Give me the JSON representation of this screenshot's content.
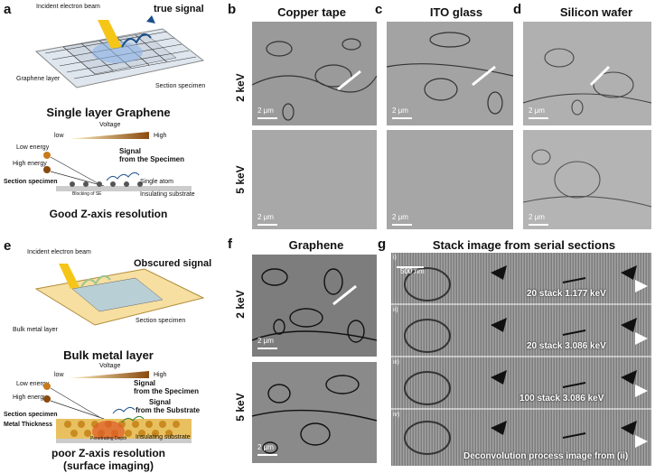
{
  "panels": {
    "a": {
      "letter": "a",
      "incident": "Incident electron beam",
      "signal": "true signal",
      "graphene_layer": "Graphene layer",
      "section": "Section specimen",
      "title": "Single layer Graphene",
      "voltage": "Voltage",
      "low": "low",
      "high": "High",
      "low_energy": "Low energy",
      "high_energy": "High energy",
      "signal_from": "Signal",
      "signal_from2": "from the Specimen",
      "section2": "Section specimen",
      "single_atom": "Single atom",
      "blocking": "Blocking of SE",
      "insulating": "Insulating substrate",
      "bottom": "Good Z-axis resolution"
    },
    "b": {
      "letter": "b",
      "title": "Copper tape"
    },
    "c": {
      "letter": "c",
      "title": "ITO glass"
    },
    "d": {
      "letter": "d",
      "title": "Silicon wafer"
    },
    "e": {
      "letter": "e",
      "incident": "Incident electron beam",
      "signal": "Obscured signal",
      "bulk": "Bulk metal layer",
      "section": "Section specimen",
      "title": "Bulk metal layer",
      "voltage": "Voltage",
      "low": "low",
      "high": "High",
      "low_energy": "Low energy",
      "high_energy": "High energy",
      "sig1": "Signal",
      "sig1b": "from the Specimen",
      "sig2": "Signal",
      "sig2b": "from the Substrate",
      "section2": "Section specimen",
      "metal": "Metal Thickness",
      "depth": "Penetrating Depth",
      "insulating": "Insulating substrate",
      "bottom1": "poor Z-axis resolution",
      "bottom2": "(surface imaging)"
    },
    "f": {
      "letter": "f",
      "title": "Graphene"
    },
    "g": {
      "letter": "g",
      "title": "Stack image from serial sections",
      "scale": "500 nm",
      "rows": [
        {
          "roman": "i)",
          "label": "20 stack 1.177 keV"
        },
        {
          "roman": "ii)",
          "label": "20 stack 3.086 keV"
        },
        {
          "roman": "iii)",
          "label": "100 stack 3.086 keV"
        },
        {
          "roman": "iv)",
          "label": "Deconvolution process image from (ii)"
        }
      ]
    }
  },
  "kev": {
    "k2": "2 keV",
    "k5": "5 keV"
  },
  "scalebar": "2 μm"
}
